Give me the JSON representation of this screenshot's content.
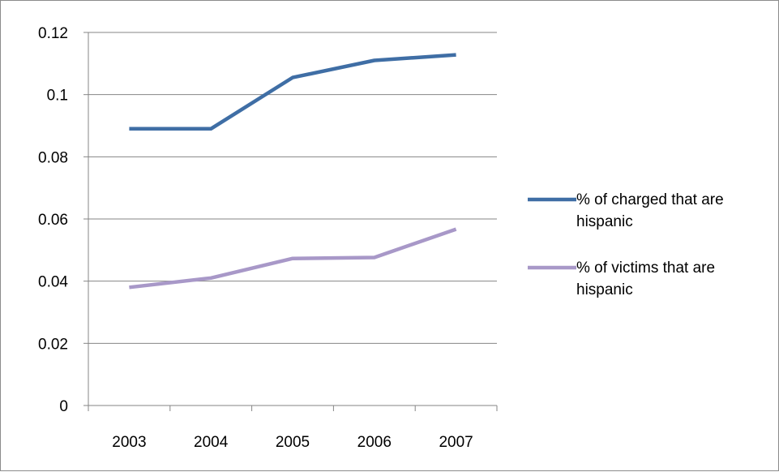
{
  "chart_data": {
    "type": "line",
    "categories": [
      "2003",
      "2004",
      "2005",
      "2006",
      "2007"
    ],
    "ylim": [
      0,
      0.12
    ],
    "yticks": [
      "0",
      "0.02",
      "0.04",
      "0.06",
      "0.08",
      "0.1",
      "0.12"
    ],
    "grid": true,
    "legend_position": "right",
    "series": [
      {
        "name_lines": [
          "% of charged that are",
          "hispanic"
        ],
        "color": "#3f6ea5",
        "values": [
          0.089,
          0.089,
          0.1055,
          0.111,
          0.1128
        ]
      },
      {
        "name_lines": [
          "% of victims that are",
          "hispanic"
        ],
        "color": "#a898c8",
        "values": [
          0.038,
          0.041,
          0.0473,
          0.0476,
          0.0567
        ]
      }
    ]
  }
}
